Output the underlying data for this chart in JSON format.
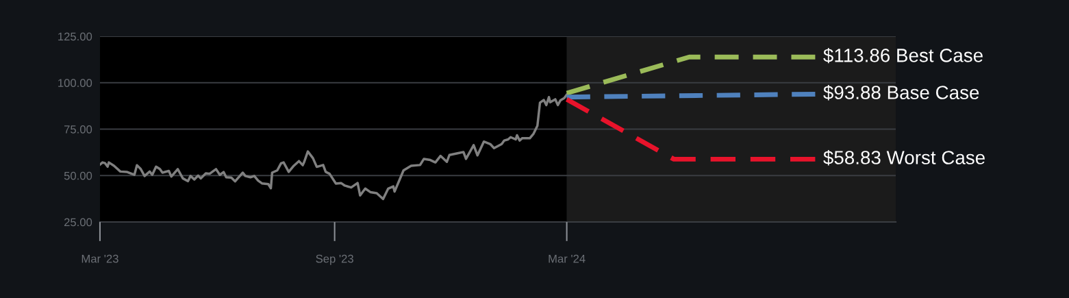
{
  "chart_data": {
    "type": "line",
    "xlim": [
      "2023-03-01",
      "2024-11-14"
    ],
    "xticks": [
      {
        "value": "2023-03-01",
        "label": "Mar '23"
      },
      {
        "value": "2023-09-01",
        "label": "Sep '23"
      },
      {
        "value": "2024-03-01",
        "label": "Mar '24"
      }
    ],
    "ylim": [
      25,
      125
    ],
    "yticks": [
      {
        "value": 25,
        "label": "25.00"
      },
      {
        "value": 50,
        "label": "50.00"
      },
      {
        "value": 75,
        "label": "75.00"
      },
      {
        "value": 100,
        "label": "100.00"
      },
      {
        "value": 125,
        "label": "125.00"
      }
    ],
    "grid": "y",
    "legend": false,
    "marker": "none",
    "bands": [
      {
        "axis": "x",
        "from": "2023-03-01",
        "to": "2024-03-01",
        "color": "#000000"
      },
      {
        "axis": "x",
        "from": "2024-03-01",
        "to": "2024-11-14",
        "color": "#1b1b1b"
      }
    ],
    "series": [
      {
        "color": "#808080",
        "line_style": "solid",
        "x": [
          "2023-03-01",
          "2023-03-03",
          "2023-03-05",
          "2023-03-07",
          "2023-03-08",
          "2023-03-12",
          "2023-03-17",
          "2023-03-22",
          "2023-03-28",
          "2023-03-30",
          "2023-04-02",
          "2023-04-05",
          "2023-04-09",
          "2023-04-11",
          "2023-04-14",
          "2023-04-17",
          "2023-04-19",
          "2023-04-24",
          "2023-04-26",
          "2023-05-01",
          "2023-05-05",
          "2023-05-09",
          "2023-05-11",
          "2023-05-14",
          "2023-05-17",
          "2023-05-19",
          "2023-05-23",
          "2023-05-26",
          "2023-05-31",
          "2023-06-03",
          "2023-06-06",
          "2023-06-08",
          "2023-06-12",
          "2023-06-15",
          "2023-06-21",
          "2023-06-23",
          "2023-06-27",
          "2023-06-30",
          "2023-07-03",
          "2023-07-06",
          "2023-07-11",
          "2023-07-13",
          "2023-07-14",
          "2023-07-18",
          "2023-07-21",
          "2023-07-23",
          "2023-07-27",
          "2023-07-31",
          "2023-08-04",
          "2023-08-07",
          "2023-08-08",
          "2023-08-11",
          "2023-08-15",
          "2023-08-18",
          "2023-08-23",
          "2023-08-25",
          "2023-08-28",
          "2023-09-02",
          "2023-09-06",
          "2023-09-09",
          "2023-09-14",
          "2023-09-19",
          "2023-09-21",
          "2023-09-25",
          "2023-09-29",
          "2023-10-04",
          "2023-10-09",
          "2023-10-13",
          "2023-10-17",
          "2023-10-18",
          "2023-10-22",
          "2023-10-25",
          "2023-10-31",
          "2023-11-07",
          "2023-11-10",
          "2023-11-15",
          "2023-11-19",
          "2023-11-23",
          "2023-11-28",
          "2023-11-30",
          "2023-12-07",
          "2023-12-11",
          "2023-12-13",
          "2023-12-19",
          "2023-12-22",
          "2023-12-27",
          "2024-01-01",
          "2024-01-04",
          "2024-01-10",
          "2024-01-12",
          "2024-01-15",
          "2024-01-17",
          "2024-01-21",
          "2024-01-22",
          "2024-01-24",
          "2024-01-26",
          "2024-02-01",
          "2024-02-04",
          "2024-02-07",
          "2024-02-09",
          "2024-02-12",
          "2024-02-14",
          "2024-02-16",
          "2024-02-17",
          "2024-02-21",
          "2024-02-23",
          "2024-02-25",
          "2024-02-28",
          "2024-03-01"
        ],
        "values": [
          55.9,
          57.1,
          56.7,
          54.8,
          57.1,
          55.3,
          52.2,
          52.0,
          50.4,
          55.6,
          53.5,
          49.8,
          52.2,
          50.4,
          54.8,
          53.5,
          51.6,
          52.5,
          49.5,
          53.5,
          48.5,
          47.0,
          49.8,
          47.9,
          50.0,
          48.5,
          51.2,
          51.0,
          53.5,
          50.4,
          51.9,
          49.1,
          48.9,
          46.9,
          51.6,
          49.8,
          49.1,
          49.8,
          47.3,
          45.8,
          45.4,
          43.2,
          51.6,
          52.8,
          56.6,
          57.1,
          52.0,
          55.3,
          57.8,
          55.6,
          57.1,
          63.0,
          59.4,
          54.7,
          55.7,
          52.0,
          51.0,
          45.7,
          46.0,
          44.6,
          43.6,
          46.0,
          39.3,
          43.0,
          41.1,
          40.5,
          37.4,
          43.0,
          44.2,
          41.4,
          47.9,
          52.8,
          55.3,
          55.7,
          59.0,
          58.4,
          57.1,
          60.6,
          57.4,
          61.1,
          62.1,
          62.7,
          59.0,
          66.4,
          60.9,
          68.3,
          67.0,
          64.8,
          67.0,
          68.9,
          69.5,
          70.7,
          69.5,
          71.7,
          68.9,
          70.1,
          70.1,
          72.6,
          76.9,
          89.3,
          90.7,
          88.0,
          92.3,
          89.5,
          91.1,
          88.0,
          90.5,
          91.7,
          93.6
        ]
      },
      {
        "color": "#9bbb59",
        "line_style": "dashed",
        "x": [
          "2024-03-01",
          "2024-06-05",
          "2024-09-12"
        ],
        "values": [
          94.4,
          113.86,
          113.86
        ]
      },
      {
        "color": "#4f81bd",
        "line_style": "dashed",
        "x": [
          "2024-03-01",
          "2024-09-12"
        ],
        "values": [
          92.3,
          93.88
        ]
      },
      {
        "color": "#e8132b",
        "line_style": "dashed",
        "x": [
          "2024-03-01",
          "2024-05-24",
          "2024-09-12"
        ],
        "values": [
          91.1,
          58.83,
          58.83
        ]
      }
    ],
    "annotations": [
      {
        "text": "$113.86 Best Case",
        "x": "2024-09-12",
        "y": 113.86
      },
      {
        "text": "$93.88 Base Case",
        "x": "2024-09-12",
        "y": 93.88
      },
      {
        "text": "$58.83 Worst Case",
        "x": "2024-09-12",
        "y": 58.83
      }
    ]
  }
}
